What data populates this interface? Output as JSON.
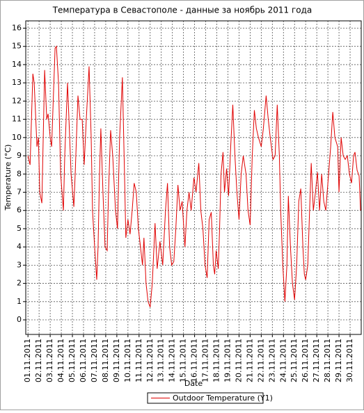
{
  "chart_data": {
    "type": "line",
    "title": "Температура в Севастополе - данные за ноябрь 2011 года",
    "xlabel": "Date",
    "ylabel": "Temperature (°C)",
    "legend": "bottom",
    "grid": true,
    "xlim": [
      0.8,
      31
    ],
    "ylim": [
      -0.8,
      16.4
    ],
    "yticks": [
      0,
      1,
      2,
      3,
      4,
      5,
      6,
      7,
      8,
      9,
      10,
      11,
      12,
      13,
      14,
      15,
      16
    ],
    "xticks": [
      {
        "value": 1,
        "label": "01.11.2011"
      },
      {
        "value": 2,
        "label": "02.11.2011"
      },
      {
        "value": 3,
        "label": "03.11.2011"
      },
      {
        "value": 4,
        "label": "04.11.2011"
      },
      {
        "value": 5,
        "label": "05.11.2011"
      },
      {
        "value": 6,
        "label": "06.11.2011"
      },
      {
        "value": 7,
        "label": "07.11.2011"
      },
      {
        "value": 8,
        "label": "08.11.2011"
      },
      {
        "value": 9,
        "label": "09.11.2011"
      },
      {
        "value": 10,
        "label": "10.11.2011"
      },
      {
        "value": 11,
        "label": "11.11.2011"
      },
      {
        "value": 12,
        "label": "12.11.2011"
      },
      {
        "value": 13,
        "label": "13.11.2011"
      },
      {
        "value": 14,
        "label": "14.11.2011"
      },
      {
        "value": 15,
        "label": "15.11.2011"
      },
      {
        "value": 16,
        "label": "16.11.2011"
      },
      {
        "value": 17,
        "label": "17.11.2011"
      },
      {
        "value": 18,
        "label": "18.11.2011"
      },
      {
        "value": 19,
        "label": "19.11.2011"
      },
      {
        "value": 20,
        "label": "20.11.2011"
      },
      {
        "value": 21,
        "label": "21.11.2011"
      },
      {
        "value": 22,
        "label": "22.11.2011"
      },
      {
        "value": 23,
        "label": "23.11.2011"
      },
      {
        "value": 24,
        "label": "24.11.2011"
      },
      {
        "value": 25,
        "label": "25.11.2011"
      },
      {
        "value": 26,
        "label": "26.11.2011"
      },
      {
        "value": 27,
        "label": "27.11.2011"
      },
      {
        "value": 28,
        "label": "28.11.2011"
      },
      {
        "value": 29,
        "label": "29.11.2011"
      },
      {
        "value": 30,
        "label": "30.11.2011"
      }
    ],
    "x": [
      1.0,
      1.19,
      1.44,
      1.56,
      1.81,
      1.94,
      2.06,
      2.25,
      2.5,
      2.69,
      2.81,
      3.0,
      3.13,
      3.44,
      3.56,
      3.75,
      3.94,
      4.19,
      4.31,
      4.56,
      4.69,
      4.88,
      5.13,
      5.25,
      5.5,
      5.69,
      5.88,
      6.06,
      6.25,
      6.5,
      6.69,
      6.81,
      7.0,
      7.19,
      7.31,
      7.44,
      7.56,
      7.75,
      7.94,
      8.13,
      8.25,
      8.44,
      8.63,
      8.88,
      9.06,
      9.25,
      9.5,
      9.69,
      9.81,
      10.0,
      10.19,
      10.38,
      10.56,
      10.75,
      10.94,
      11.13,
      11.31,
      11.44,
      11.63,
      11.81,
      12.0,
      12.19,
      12.44,
      12.63,
      12.88,
      13.13,
      13.38,
      13.56,
      13.75,
      13.94,
      14.13,
      14.31,
      14.5,
      14.69,
      14.88,
      15.13,
      15.31,
      15.5,
      15.69,
      15.94,
      16.13,
      16.38,
      16.56,
      16.75,
      16.94,
      17.13,
      17.31,
      17.5,
      17.69,
      17.81,
      17.94,
      18.13,
      18.25,
      18.38,
      18.56,
      18.69,
      18.88,
      19.06,
      19.25,
      19.44,
      19.63,
      19.81,
      20.0,
      20.19,
      20.38,
      20.63,
      20.81,
      21.0,
      21.19,
      21.38,
      21.56,
      21.75,
      22.0,
      22.19,
      22.44,
      22.63,
      22.81,
      23.06,
      23.25,
      23.44,
      23.63,
      23.75,
      23.94,
      24.13,
      24.31,
      24.44,
      24.63,
      24.81,
      25.0,
      25.19,
      25.38,
      25.56,
      25.75,
      25.88,
      26.0,
      26.19,
      26.38,
      26.5,
      26.69,
      26.88,
      27.06,
      27.25,
      27.44,
      27.63,
      27.81,
      28.0,
      28.25,
      28.44,
      28.63,
      28.88,
      29.0,
      29.19,
      29.38,
      29.56,
      29.75,
      29.94,
      30.13,
      30.31,
      30.44,
      30.63,
      30.81,
      30.94
    ],
    "series": [
      {
        "name": "Outdoor Temperature (Y1)",
        "color": "#e00000",
        "values": [
          9,
          8.5,
          13.5,
          13,
          9.5,
          10,
          7,
          6.4,
          13.7,
          11,
          11.3,
          10,
          9.5,
          14.9,
          15,
          13,
          8,
          6,
          9,
          13,
          11,
          8,
          6.2,
          8,
          12.3,
          11,
          11,
          8.5,
          11,
          13.9,
          10,
          6,
          4,
          2.2,
          4,
          8,
          10.5,
          7,
          4,
          3.8,
          7,
          10.4,
          9,
          6,
          5,
          10,
          13.3,
          8,
          4.5,
          5.5,
          4.7,
          6,
          7.5,
          7,
          5,
          4,
          3,
          4.5,
          2,
          1,
          0.7,
          2,
          5.3,
          2.8,
          4.3,
          3,
          6,
          7.5,
          4,
          3,
          3.2,
          5,
          7.4,
          6,
          6.5,
          4,
          6,
          7,
          6,
          7.8,
          7,
          8.6,
          6,
          5,
          3,
          2.3,
          5.5,
          5.9,
          3,
          2.5,
          3.8,
          2.8,
          5,
          8,
          9.2,
          7,
          8.3,
          6.8,
          9.5,
          11.8,
          9,
          7,
          5.5,
          8,
          9,
          8,
          6,
          5.2,
          9,
          11.5,
          10.5,
          10,
          9.5,
          10.5,
          12.3,
          11,
          10,
          8.8,
          9,
          11.8,
          9,
          6,
          3,
          1,
          3,
          6.8,
          4,
          2,
          1.1,
          3,
          6.5,
          7.2,
          4,
          2.5,
          2.2,
          3,
          6.5,
          8.6,
          6,
          7,
          8.1,
          6,
          8,
          6.5,
          6,
          7.5,
          9.5,
          11.4,
          10,
          9.5,
          7,
          10,
          9,
          8.8,
          9,
          8,
          7.5,
          9,
          9.2,
          8.2,
          7.9,
          6
        ]
      }
    ]
  }
}
